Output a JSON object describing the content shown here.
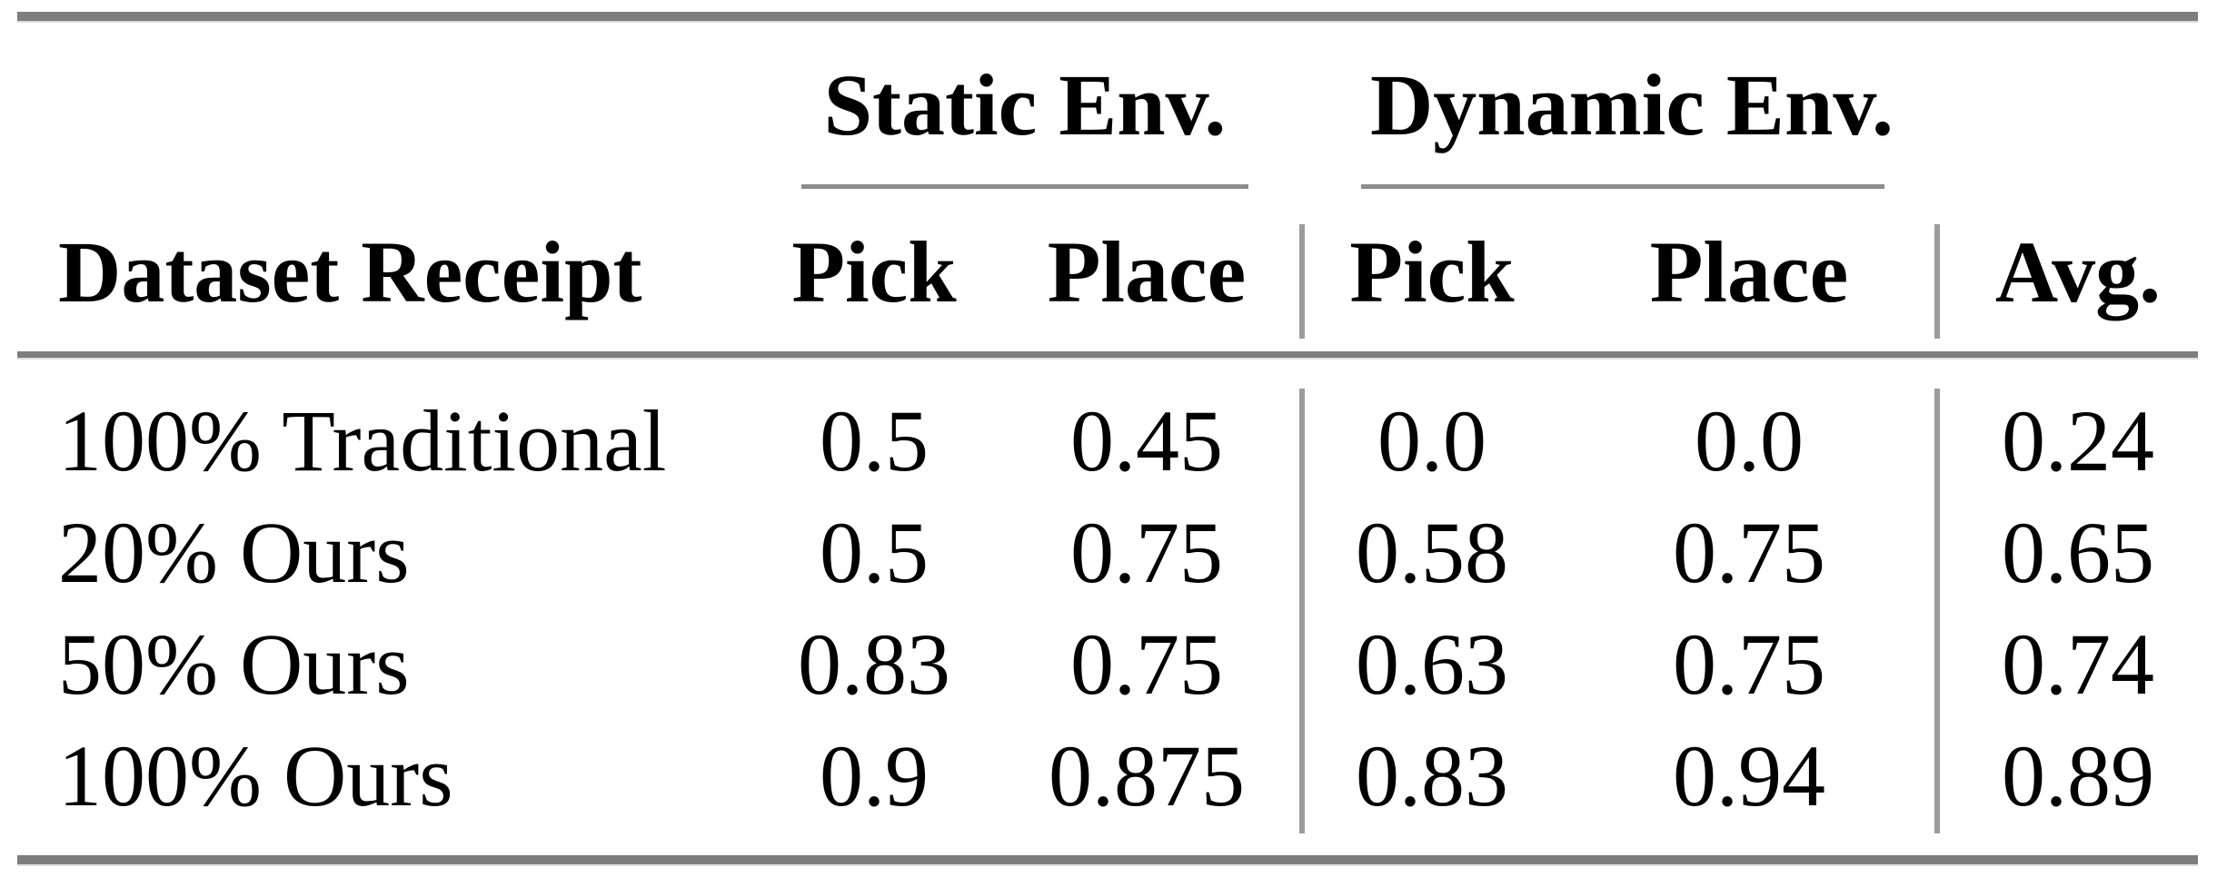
{
  "table": {
    "title": "dataset-receipt-results-table",
    "group_headers": {
      "static": "Static Env.",
      "dynamic": "Dynamic Env."
    },
    "column_headers": {
      "row_label": "Dataset Receipt",
      "static_pick": "Pick",
      "static_place": "Place",
      "dynamic_pick": "Pick",
      "dynamic_place": "Place",
      "avg": "Avg."
    },
    "rows": [
      {
        "label": "100% Traditional",
        "static_pick": "0.5",
        "static_place": "0.45",
        "dynamic_pick": "0.0",
        "dynamic_place": "0.0",
        "avg": "0.24"
      },
      {
        "label": "20% Ours",
        "static_pick": "0.5",
        "static_place": "0.75",
        "dynamic_pick": "0.58",
        "dynamic_place": "0.75",
        "avg": "0.65"
      },
      {
        "label": "50% Ours",
        "static_pick": "0.83",
        "static_place": "0.75",
        "dynamic_pick": "0.63",
        "dynamic_place": "0.75",
        "avg": "0.74"
      },
      {
        "label": "100% Ours",
        "static_pick": "0.9",
        "static_place": "0.875",
        "dynamic_pick": "0.83",
        "dynamic_place": "0.94",
        "avg": "0.89"
      }
    ]
  },
  "colors": {
    "heavy_rule": "#7d7d7d",
    "cmidrule": "#8c8c8c",
    "vertical_rule": "#9c9c9c",
    "text": "#000000",
    "background": "#ffffff"
  }
}
